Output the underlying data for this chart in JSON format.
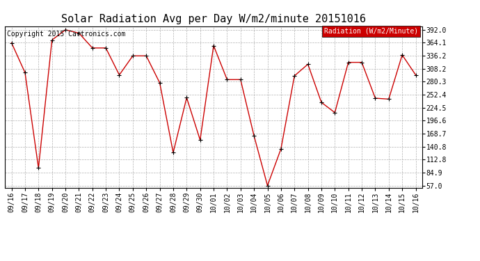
{
  "title": "Solar Radiation Avg per Day W/m2/minute 20151016",
  "copyright_text": "Copyright 2015 Cartronics.com",
  "legend_label": "Radiation (W/m2/Minute)",
  "x_labels": [
    "09/16",
    "09/17",
    "09/18",
    "09/19",
    "09/20",
    "09/21",
    "09/22",
    "09/23",
    "09/24",
    "09/25",
    "09/26",
    "09/27",
    "09/28",
    "09/29",
    "09/30",
    "10/01",
    "10/02",
    "10/03",
    "10/04",
    "10/05",
    "10/06",
    "10/07",
    "10/08",
    "10/09",
    "10/10",
    "10/11",
    "10/12",
    "10/13",
    "10/14",
    "10/15",
    "10/16"
  ],
  "y_values": [
    364.0,
    300.0,
    95.0,
    370.0,
    392.0,
    385.0,
    353.0,
    353.0,
    295.0,
    336.0,
    336.0,
    278.0,
    128.0,
    246.0,
    155.0,
    358.0,
    285.0,
    285.0,
    164.0,
    57.0,
    136.0,
    293.0,
    318.0,
    236.0,
    214.0,
    322.0,
    322.0,
    245.0,
    243.0,
    338.0,
    295.0
  ],
  "y_min": 57.0,
  "y_max": 392.0,
  "y_ticks": [
    57.0,
    84.9,
    112.8,
    140.8,
    168.7,
    196.6,
    224.5,
    252.4,
    280.3,
    308.2,
    336.2,
    364.1,
    392.0
  ],
  "line_color": "#cc0000",
  "marker_color": "#000000",
  "bg_color": "#ffffff",
  "plot_bg_color": "#ffffff",
  "grid_color": "#b0b0b0",
  "legend_bg": "#cc0000",
  "legend_text_color": "#ffffff",
  "title_fontsize": 11,
  "tick_fontsize": 7,
  "copyright_fontsize": 7
}
